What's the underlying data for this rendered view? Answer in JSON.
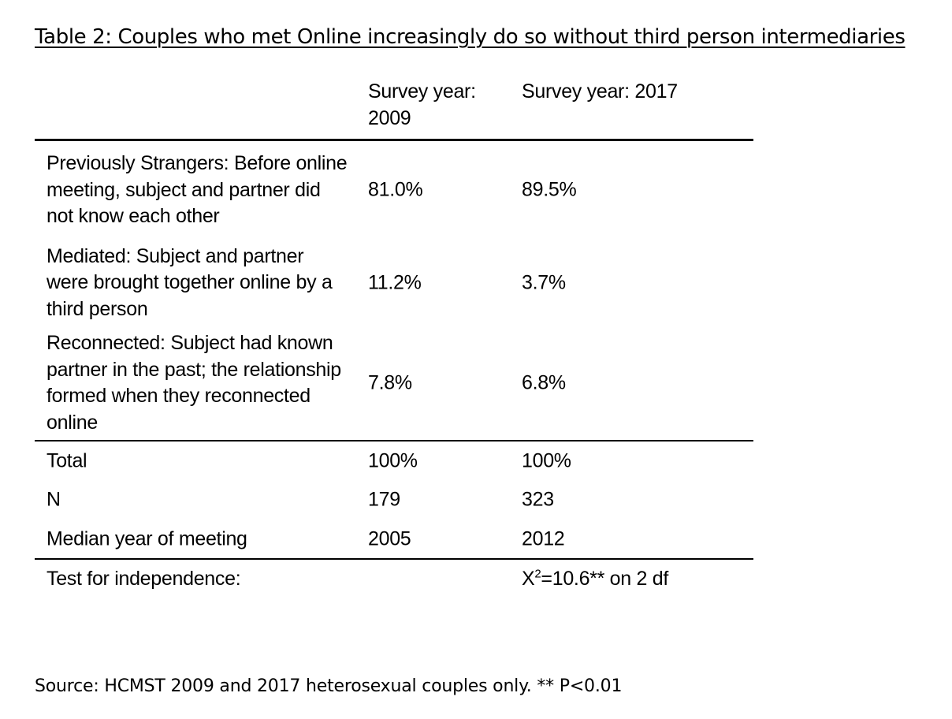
{
  "title": "Table 2: Couples who met Online increasingly do so without third person intermediaries",
  "table": {
    "headers": {
      "row_label": "",
      "col_2009": "Survey year: 2009",
      "col_2017": "Survey year: 2017"
    },
    "rows": [
      {
        "label": "Previously Strangers: Before online meeting, subject and partner did not know each other",
        "v2009": "81.0%",
        "v2017": "89.5%"
      },
      {
        "label": "Mediated: Subject and partner were brought together online by a third person",
        "v2009": "11.2%",
        "v2017": "3.7%"
      },
      {
        "label": "Reconnected: Subject had known partner in the past; the relationship formed when they reconnected online",
        "v2009": "7.8%",
        "v2017": "6.8%"
      }
    ],
    "summary": [
      {
        "label": "Total",
        "v2009": "100%",
        "v2017": "100%"
      },
      {
        "label": "N",
        "v2009": "179",
        "v2017": "323"
      },
      {
        "label": "Median year of meeting",
        "v2009": "2005",
        "v2017": "2012"
      }
    ],
    "test": {
      "label": "Test for independence:",
      "v2009": "",
      "stat_prefix": "X",
      "stat_sup": "2",
      "stat_rest": "=10.6** on 2 df"
    }
  },
  "source": "Source: HCMST 2009 and 2017 heterosexual couples only.  ** P<0.01"
}
